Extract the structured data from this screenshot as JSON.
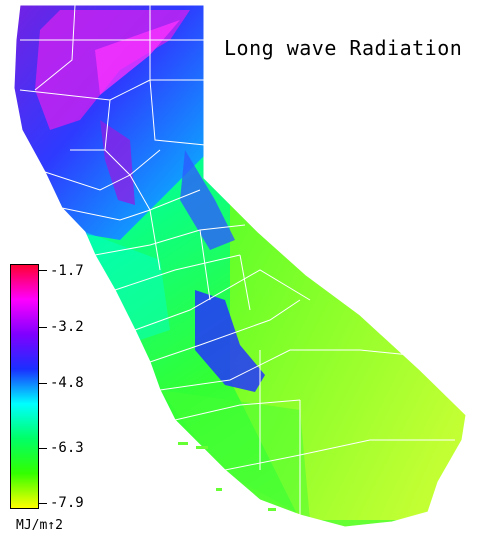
{
  "title": "Long wave Radiation",
  "legend": {
    "units": "MJ/m↑2",
    "ticks": [
      "-1.7",
      "-3.2",
      "-4.8",
      "-6.3",
      "-7.9"
    ],
    "gradient_colors": [
      "#ff0033",
      "#ff00ff",
      "#7f00ff",
      "#1a2fff",
      "#00ffff",
      "#00ff66",
      "#33ff00",
      "#ffff00"
    ]
  },
  "colors": {
    "northwest": "#5a1fd6",
    "sierra": "#2b66ff",
    "central": "#00e6a0",
    "south": "#55ff20",
    "desert": "#b8ff33",
    "county_lines": "#ffffff"
  }
}
